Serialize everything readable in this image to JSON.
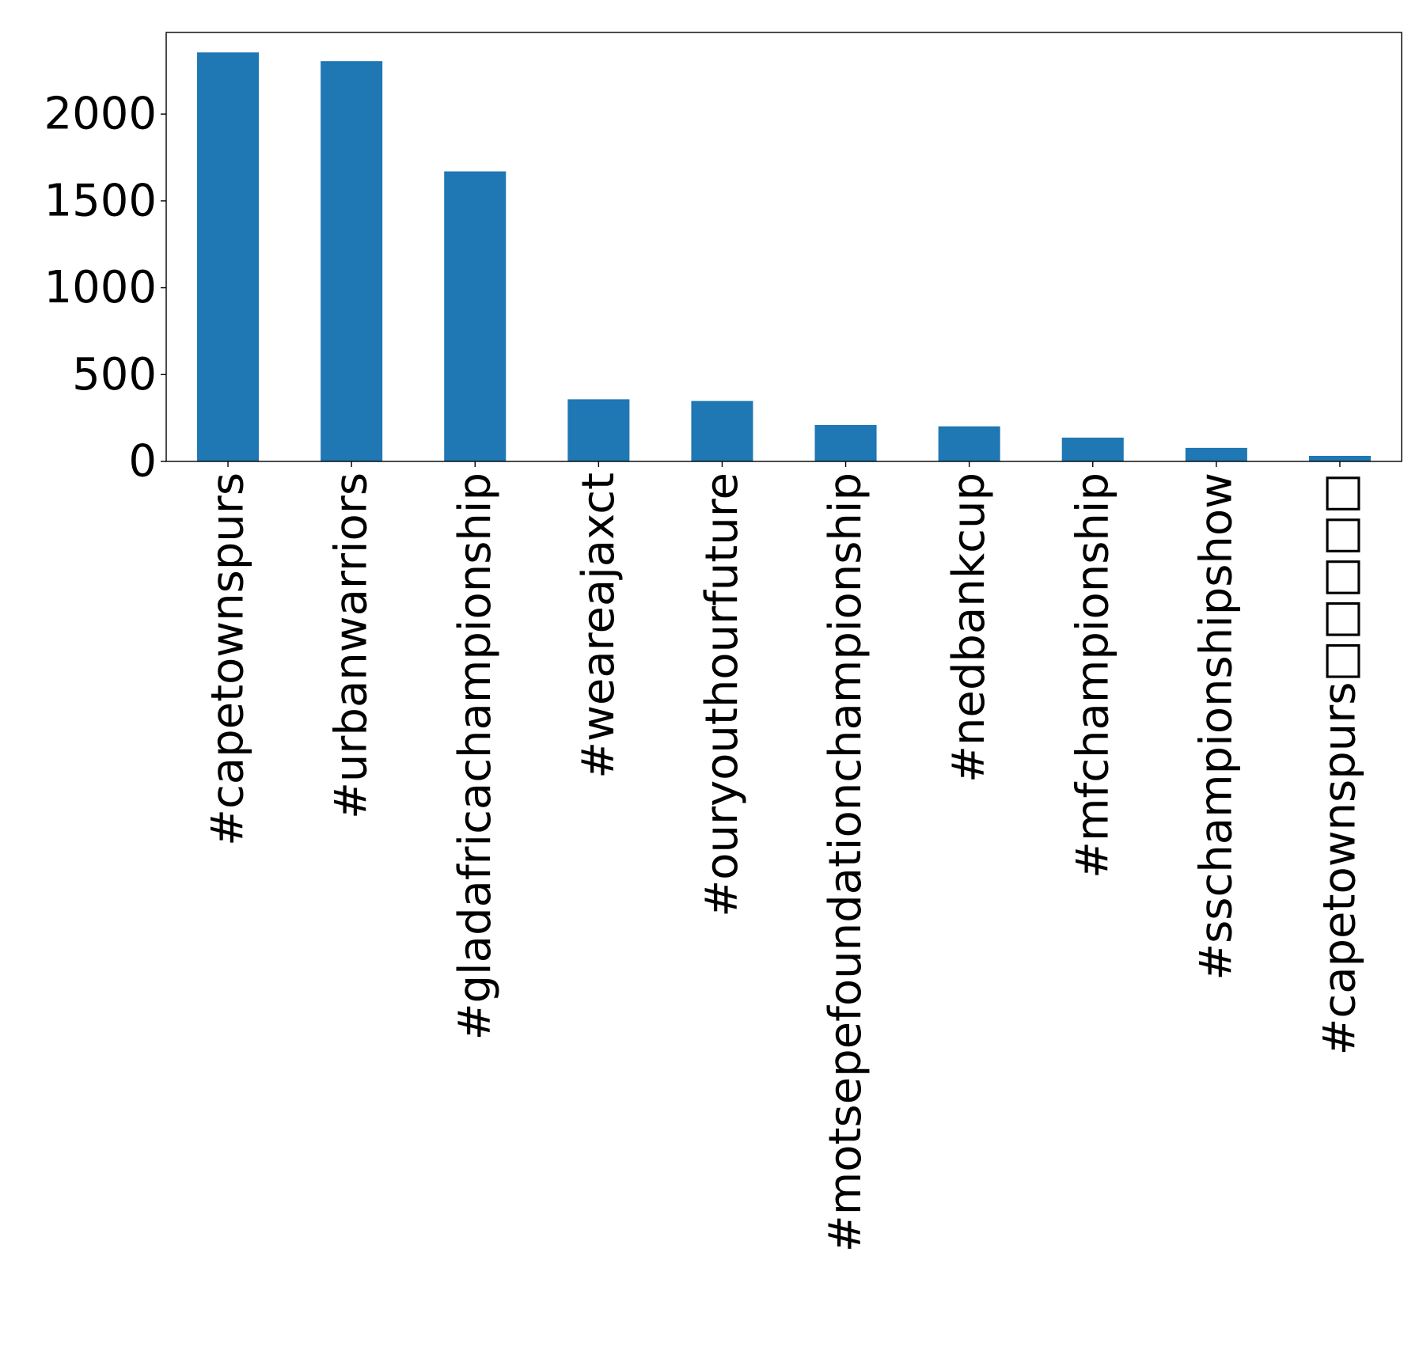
{
  "chart_data": {
    "type": "bar",
    "title": "",
    "xlabel": "",
    "ylabel": "",
    "categories": [
      "#capetownspurs",
      "#urbanwarriors",
      "#gladafricachampionship",
      "#weareajaxct",
      "#ouryouthourfuture",
      "#motsepefoundationchampionship",
      "#nedbankcup",
      "#mfchampionship",
      "#sschampionshipshow",
      "#capetownspurs□□□□□"
    ],
    "values": [
      2355,
      2305,
      1670,
      358,
      348,
      210,
      202,
      137,
      78,
      32
    ],
    "ylim": [
      0,
      2470
    ],
    "yticks": [
      0,
      500,
      1000,
      1500,
      2000
    ],
    "ytick_labels": [
      "0",
      "500",
      "1000",
      "1500",
      "2000"
    ],
    "bar_color": "#1f77b4",
    "grid": false,
    "legend": "none"
  }
}
